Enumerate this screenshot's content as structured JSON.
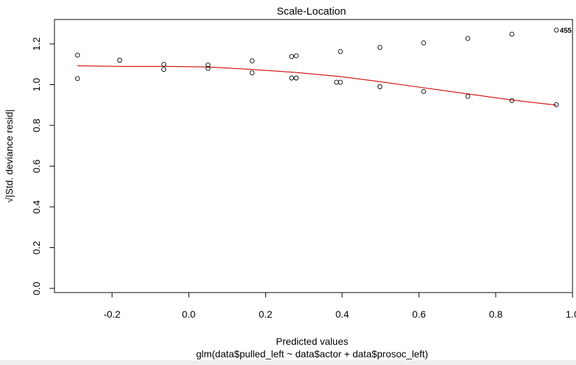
{
  "chart_data": {
    "type": "scatter",
    "title": "Scale-Location",
    "xlabel": "Predicted values",
    "ylabel": "√|Std. deviance resid|",
    "subtitle": "glm(data$pulled_left ~ data$actor + data$prosoc_left)",
    "xlim": [
      -0.35,
      1.0
    ],
    "ylim": [
      -0.02,
      1.32
    ],
    "xticks": [
      -0.2,
      0.0,
      0.2,
      0.4,
      0.6,
      0.8,
      1.0
    ],
    "xtick_labels": [
      "-0.2",
      "0.0",
      "0.2",
      "0.4",
      "0.6",
      "0.8",
      "1.0"
    ],
    "yticks": [
      0.0,
      0.2,
      0.4,
      0.6,
      0.8,
      1.0,
      1.2
    ],
    "ytick_labels": [
      "0.0",
      "0.2",
      "0.4",
      "0.6",
      "0.8",
      "1.0",
      "1.2"
    ],
    "grid": false,
    "points": [
      {
        "x": -0.29,
        "y": 1.145
      },
      {
        "x": -0.29,
        "y": 1.03
      },
      {
        "x": -0.18,
        "y": 1.12
      },
      {
        "x": -0.065,
        "y": 1.1
      },
      {
        "x": -0.065,
        "y": 1.075
      },
      {
        "x": 0.05,
        "y": 1.097
      },
      {
        "x": 0.05,
        "y": 1.08
      },
      {
        "x": 0.165,
        "y": 1.117
      },
      {
        "x": 0.165,
        "y": 1.058
      },
      {
        "x": 0.268,
        "y": 1.138
      },
      {
        "x": 0.268,
        "y": 1.033
      },
      {
        "x": 0.28,
        "y": 1.142
      },
      {
        "x": 0.28,
        "y": 1.033
      },
      {
        "x": 0.385,
        "y": 1.012
      },
      {
        "x": 0.395,
        "y": 1.012
      },
      {
        "x": 0.395,
        "y": 1.163
      },
      {
        "x": 0.498,
        "y": 1.183
      },
      {
        "x": 0.498,
        "y": 0.99
      },
      {
        "x": 0.612,
        "y": 1.205
      },
      {
        "x": 0.612,
        "y": 0.967
      },
      {
        "x": 0.727,
        "y": 1.227
      },
      {
        "x": 0.727,
        "y": 0.943
      },
      {
        "x": 0.842,
        "y": 1.248
      },
      {
        "x": 0.842,
        "y": 0.922
      },
      {
        "x": 0.958,
        "y": 1.268
      },
      {
        "x": 0.958,
        "y": 0.902
      }
    ],
    "smooth_line": {
      "color": "#d00000",
      "x": [
        -0.29,
        -0.18,
        -0.065,
        0.05,
        0.165,
        0.28,
        0.395,
        0.498,
        0.612,
        0.727,
        0.842,
        0.958
      ],
      "y": [
        1.093,
        1.09,
        1.09,
        1.087,
        1.075,
        1.06,
        1.04,
        1.015,
        0.985,
        0.955,
        0.925,
        0.9
      ]
    },
    "annotation": {
      "text": "455",
      "x": 0.958,
      "y": 1.268
    }
  }
}
